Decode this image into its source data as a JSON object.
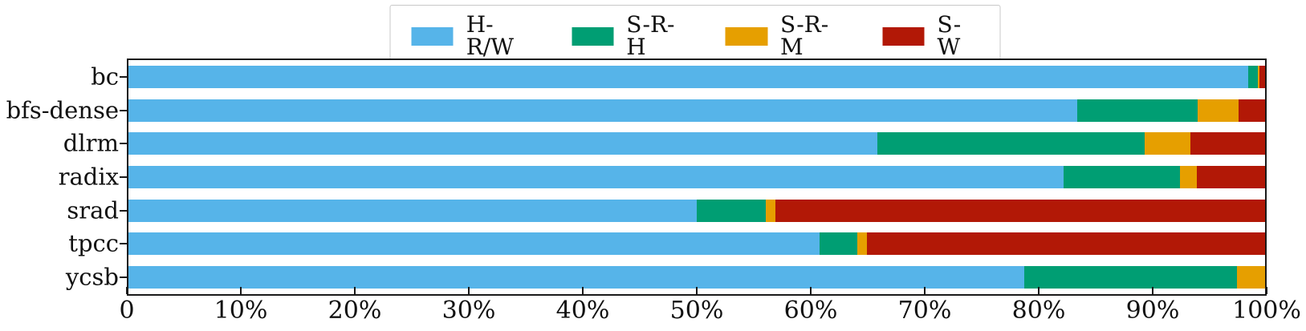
{
  "chart_data": {
    "type": "bar",
    "orientation": "horizontal",
    "stacked": true,
    "unit": "percent",
    "title": "",
    "xlabel": "",
    "ylabel": "",
    "xlim": [
      0,
      100
    ],
    "grid": false,
    "legend_position": "top-center",
    "categories": [
      "bc",
      "bfs-dense",
      "dlrm",
      "radix",
      "srad",
      "tpcc",
      "ycsb"
    ],
    "series": [
      {
        "name": "H-R/W",
        "color": "#56b4e9",
        "values": [
          98.5,
          83.5,
          65.9,
          82.3,
          50.0,
          60.8,
          78.8
        ]
      },
      {
        "name": "S-R-H",
        "color": "#009e73",
        "values": [
          0.9,
          10.6,
          23.5,
          10.2,
          6.1,
          3.3,
          18.7
        ]
      },
      {
        "name": "S-R-M",
        "color": "#e69f00",
        "values": [
          0.1,
          3.6,
          4.0,
          1.5,
          0.8,
          0.9,
          2.5
        ]
      },
      {
        "name": "S-W",
        "color": "#b21806",
        "values": [
          0.5,
          2.3,
          6.6,
          6.0,
          43.1,
          35.0,
          0.0
        ]
      }
    ],
    "x_ticks": [
      "0",
      "10%",
      "20%",
      "30%",
      "40%",
      "50%",
      "60%",
      "70%",
      "80%",
      "90%",
      "100%"
    ],
    "axis_color": "#1a1a1a",
    "background_color": "#ffffff"
  }
}
